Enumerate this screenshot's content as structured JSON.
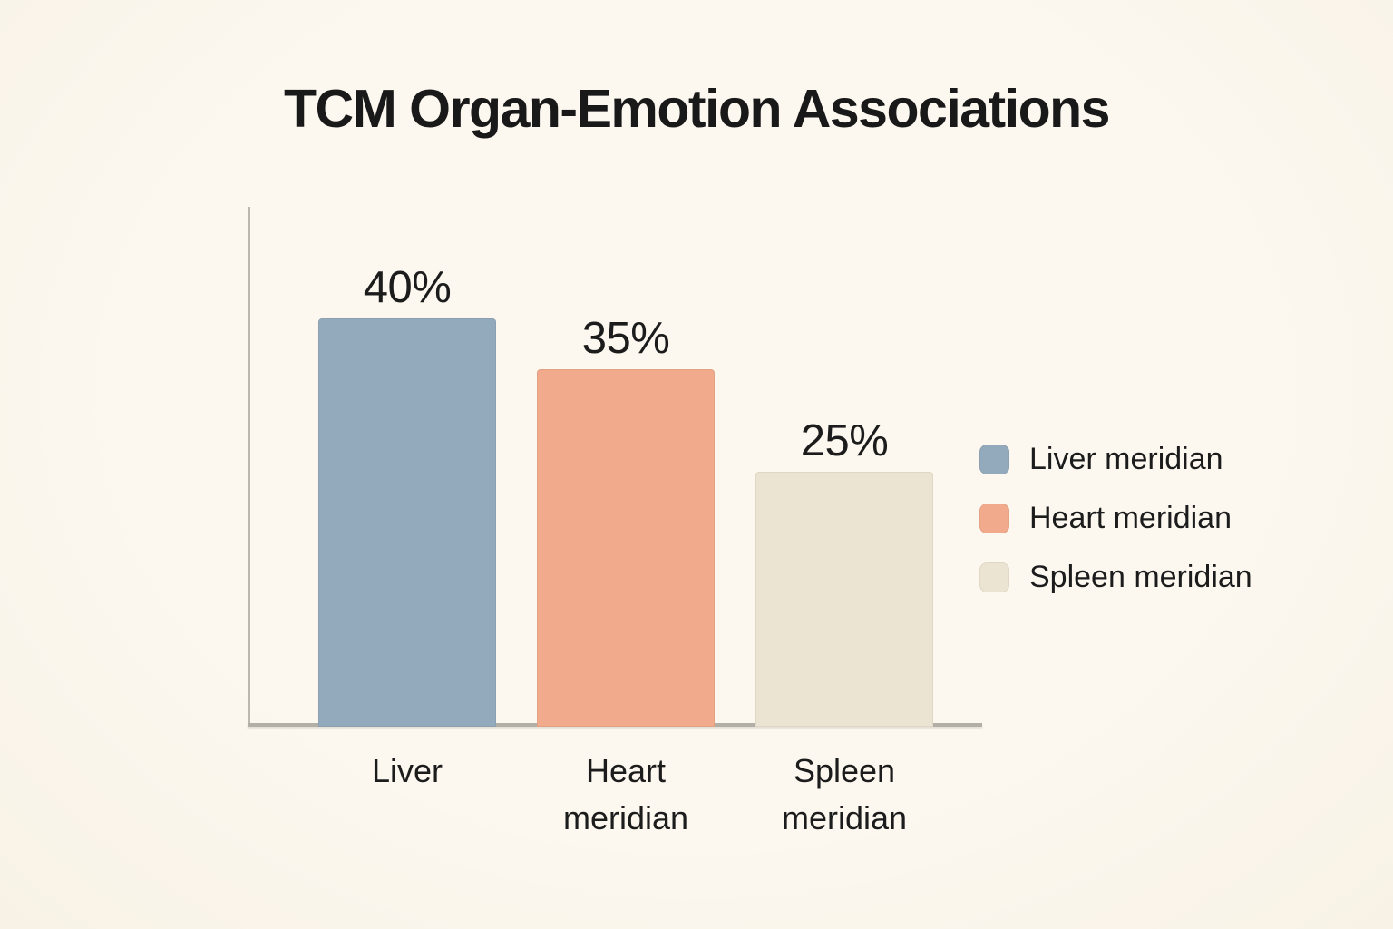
{
  "chart_data": {
    "type": "bar",
    "title": "TCM Organ-Emotion Associations",
    "categories": [
      "Liver",
      "Heart\nmeridian",
      "Spleen\nmeridian"
    ],
    "values": [
      40,
      35,
      25
    ],
    "value_labels": [
      "40%",
      "35%",
      "25%"
    ],
    "unit": "%",
    "series_names": [
      "Liver meridian",
      "Heart meridian",
      "Spleen meridian"
    ],
    "colors": [
      "#93a9bc",
      "#f1aa8b",
      "#ece4d2"
    ],
    "xlabel": "",
    "ylabel": "",
    "ylim": [
      0,
      50
    ],
    "grid": false,
    "legend_position": "right",
    "background_color": "#fbf7ee",
    "axis_color": "#b3b0a8",
    "text_color": "#1c1c1c"
  }
}
